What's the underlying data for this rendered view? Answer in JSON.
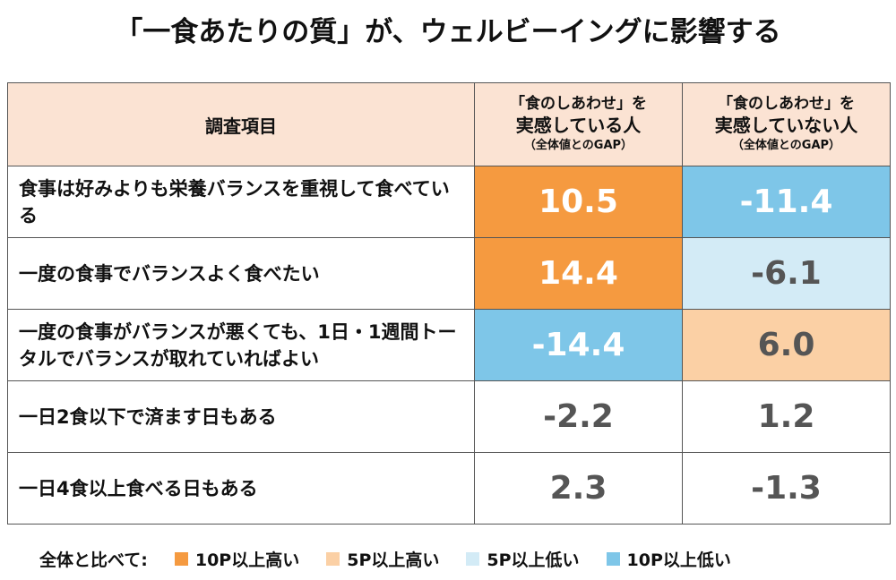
{
  "title": "「一食あたりの質」が、ウェルビーイングに影響する",
  "table": {
    "header": {
      "item": "調査項目",
      "columns": [
        {
          "lines": [
            "「食のしあわせ」を",
            "実感している人",
            "（全体値とのGAP）"
          ]
        },
        {
          "lines": [
            "「食のしあわせ」を",
            "実感していない人",
            "（全体値とのGAP）"
          ]
        }
      ]
    },
    "rows": [
      {
        "label": "食事は好みよりも栄養バランスを重視して食べている",
        "values": [
          "10.5",
          "-11.4"
        ],
        "colors": [
          "#f59a40",
          "#7ec6e8"
        ]
      },
      {
        "label": "一度の食事でバランスよく食べたい",
        "values": [
          "14.4",
          "-6.1"
        ],
        "colors": [
          "#f59a40",
          "#d3ebf6"
        ]
      },
      {
        "label": "一度の食事がバランスが悪くても、1日・1週間トータルでバランスが取れていればよい",
        "values": [
          "-14.4",
          "6.0"
        ],
        "colors": [
          "#7ec6e8",
          "#fbd0a5"
        ]
      },
      {
        "label": "一日2食以下で済ます日もある",
        "values": [
          "-2.2",
          "1.2"
        ],
        "colors": [
          "#ffffff",
          "#ffffff"
        ]
      },
      {
        "label": "一日4食以上食べる日もある",
        "values": [
          "2.3",
          "-1.3"
        ],
        "colors": [
          "#ffffff",
          "#ffffff"
        ]
      }
    ]
  },
  "legend": {
    "label": "全体と比べて:",
    "items": [
      {
        "name": "10P以上高い",
        "color": "#f59a40"
      },
      {
        "name": "5P以上高い",
        "color": "#fbd0a5"
      },
      {
        "name": "5P以上低い",
        "color": "#d3ebf6"
      },
      {
        "name": "10P以上低い",
        "color": "#7ec6e8"
      }
    ]
  }
}
